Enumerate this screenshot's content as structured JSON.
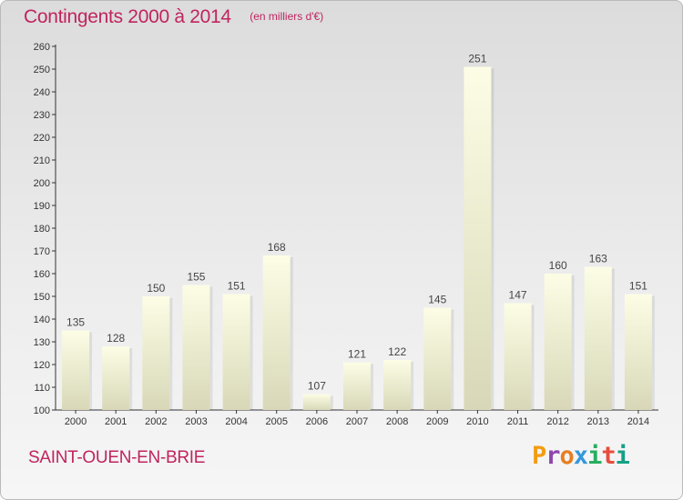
{
  "header": {
    "title": "Contingents 2000 à 2014",
    "subtitle": "(en milliers d'€)"
  },
  "footer": {
    "place": "SAINT-OUEN-EN-BRIE",
    "brand": "Proxiti",
    "brand_colors": [
      "#f39c12",
      "#8e44ad",
      "#e67e22",
      "#3498db",
      "#27ae60",
      "#e74c3c",
      "#16a085"
    ]
  },
  "colors": {
    "title": "#c0245f",
    "axis": "#333333",
    "bar_light": "#fdfde6",
    "bar_dark": "#d8d8b8"
  },
  "chart_data": {
    "type": "bar",
    "title": "Contingents 2000 à 2014",
    "subtitle": "(en milliers d'€)",
    "categories": [
      "2000",
      "2001",
      "2002",
      "2003",
      "2004",
      "2005",
      "2006",
      "2007",
      "2008",
      "2009",
      "2010",
      "2011",
      "2012",
      "2013",
      "2014"
    ],
    "values": [
      135,
      128,
      150,
      155,
      151,
      168,
      107,
      121,
      122,
      145,
      251,
      147,
      160,
      163,
      151
    ],
    "ylim": [
      100,
      260
    ],
    "yticks": [
      100,
      110,
      120,
      130,
      140,
      150,
      160,
      170,
      180,
      190,
      200,
      210,
      220,
      230,
      240,
      250,
      260
    ],
    "grid": false,
    "legend": "none"
  }
}
